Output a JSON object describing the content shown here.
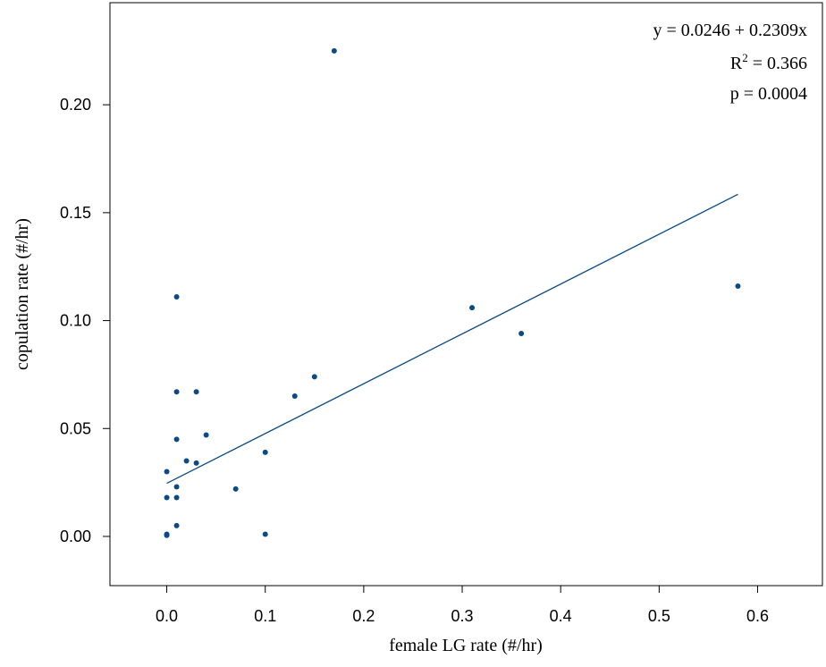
{
  "chart_data": {
    "type": "scatter",
    "x_label": "female LG rate (#/hr)",
    "y_label": "copulation rate (#/hr)",
    "annotations": [
      "y = 0.0246 + 0.2309x",
      [
        "R",
        "2",
        " = 0.366"
      ],
      "p = 0.0004"
    ],
    "series": [
      {
        "color": "#0b4a85",
        "x": [
          0.17,
          0.58,
          0.31,
          0.36,
          0.01,
          0.15,
          0.13,
          0.01,
          0.03,
          0.04,
          0.01,
          0.1,
          0.02,
          0.03,
          0.0,
          0.01,
          0.07,
          0.0,
          0.01,
          0.01,
          0.0,
          0.0,
          0.1
        ],
        "values": [
          0.225,
          0.116,
          0.106,
          0.094,
          0.111,
          0.074,
          0.065,
          0.067,
          0.067,
          0.047,
          0.045,
          0.039,
          0.035,
          0.034,
          0.03,
          0.023,
          0.022,
          0.018,
          0.018,
          0.005,
          0.001,
          0.0005,
          0.001
        ]
      }
    ],
    "fit_line": {
      "color": "#0b4a85",
      "x": [
        0,
        0.58
      ],
      "values": [
        0.0246,
        0.1585
      ]
    },
    "xlim": [
      -0.0577,
      0.6658
    ],
    "ylim": [
      -0.0228,
      0.2473
    ],
    "xticks": [
      {
        "value": 0,
        "label": "0.0"
      },
      0.1,
      0.2,
      0.3,
      0.4,
      0.5,
      0.6
    ],
    "yticks": [
      {
        "value": 0,
        "label": "0.00"
      },
      0.05,
      {
        "value": 0.1,
        "label": "0.10"
      },
      0.15,
      {
        "value": 0.2,
        "label": "0.20"
      }
    ]
  }
}
